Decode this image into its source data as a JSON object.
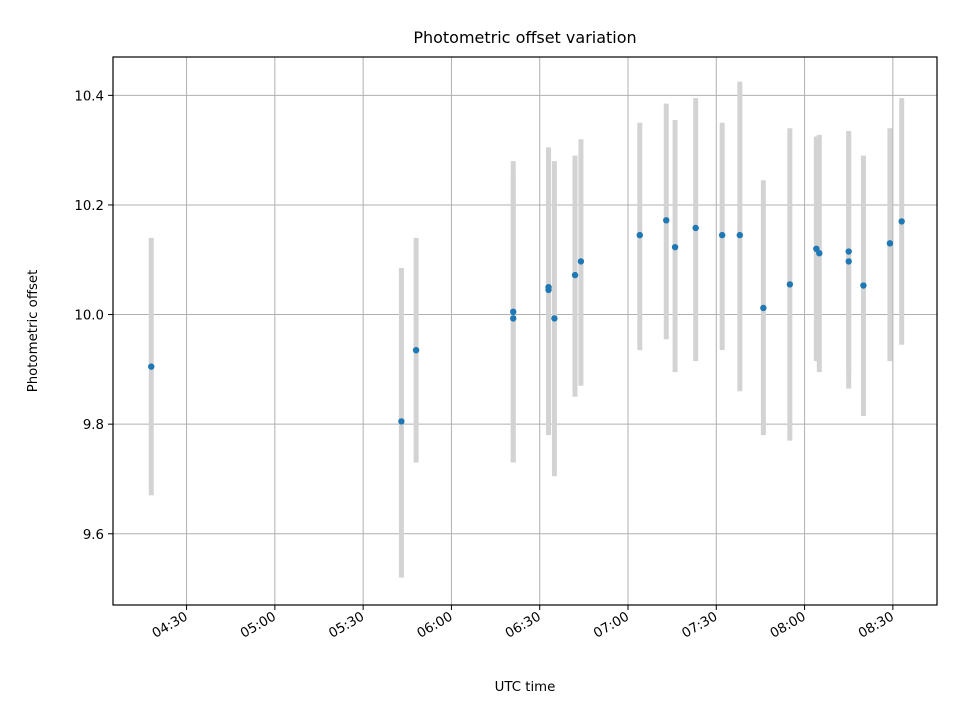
{
  "chart_data": {
    "type": "scatter",
    "title": "Photometric offset variation",
    "xlabel": "UTC time",
    "ylabel": "Photometric offset",
    "xlim": [
      "04:05",
      "08:45"
    ],
    "ylim": [
      9.47,
      10.47
    ],
    "grid": true,
    "x_ticks": [
      "04:30",
      "05:00",
      "05:30",
      "06:00",
      "06:30",
      "07:00",
      "07:30",
      "08:00",
      "08:30"
    ],
    "y_ticks": [
      9.6,
      9.8,
      10.0,
      10.2,
      10.4
    ],
    "y_tick_labels": [
      "9.6",
      "9.8",
      "10.0",
      "10.2",
      "10.4"
    ],
    "series": [
      {
        "color": "#1f77b4",
        "error_color": "#d3d3d3",
        "points": [
          {
            "x": "04:18",
            "y": 9.905,
            "ylo": 9.67,
            "yhi": 10.14
          },
          {
            "x": "05:43",
            "y": 9.805,
            "ylo": 9.52,
            "yhi": 10.085
          },
          {
            "x": "05:48",
            "y": 9.935,
            "ylo": 9.73,
            "yhi": 10.14
          },
          {
            "x": "06:21",
            "y": 9.993,
            "ylo": 9.73,
            "yhi": 10.255
          },
          {
            "x": "06:21",
            "y": 10.005,
            "ylo": 9.73,
            "yhi": 10.28
          },
          {
            "x": "06:33",
            "y": 10.045,
            "ylo": 9.78,
            "yhi": 10.305
          },
          {
            "x": "06:33",
            "y": 10.05,
            "ylo": 9.79,
            "yhi": 10.3
          },
          {
            "x": "06:35",
            "y": 9.993,
            "ylo": 9.705,
            "yhi": 10.28
          },
          {
            "x": "06:42",
            "y": 10.072,
            "ylo": 9.85,
            "yhi": 10.29
          },
          {
            "x": "06:44",
            "y": 10.097,
            "ylo": 9.87,
            "yhi": 10.32
          },
          {
            "x": "07:04",
            "y": 10.145,
            "ylo": 9.935,
            "yhi": 10.35
          },
          {
            "x": "07:13",
            "y": 10.172,
            "ylo": 9.955,
            "yhi": 10.385
          },
          {
            "x": "07:16",
            "y": 10.123,
            "ylo": 9.895,
            "yhi": 10.355
          },
          {
            "x": "07:23",
            "y": 10.158,
            "ylo": 9.915,
            "yhi": 10.395
          },
          {
            "x": "07:32",
            "y": 10.145,
            "ylo": 9.935,
            "yhi": 10.35
          },
          {
            "x": "07:38",
            "y": 10.145,
            "ylo": 9.86,
            "yhi": 10.425
          },
          {
            "x": "07:46",
            "y": 10.012,
            "ylo": 9.78,
            "yhi": 10.245
          },
          {
            "x": "07:55",
            "y": 10.055,
            "ylo": 9.77,
            "yhi": 10.34
          },
          {
            "x": "08:04",
            "y": 10.12,
            "ylo": 9.915,
            "yhi": 10.325
          },
          {
            "x": "08:05",
            "y": 10.112,
            "ylo": 9.895,
            "yhi": 10.328
          },
          {
            "x": "08:15",
            "y": 10.115,
            "ylo": 9.895,
            "yhi": 10.335
          },
          {
            "x": "08:15",
            "y": 10.097,
            "ylo": 9.865,
            "yhi": 10.328
          },
          {
            "x": "08:20",
            "y": 10.053,
            "ylo": 9.815,
            "yhi": 10.29
          },
          {
            "x": "08:29",
            "y": 10.13,
            "ylo": 9.915,
            "yhi": 10.34
          },
          {
            "x": "08:33",
            "y": 10.17,
            "ylo": 9.945,
            "yhi": 10.395
          }
        ]
      }
    ]
  }
}
